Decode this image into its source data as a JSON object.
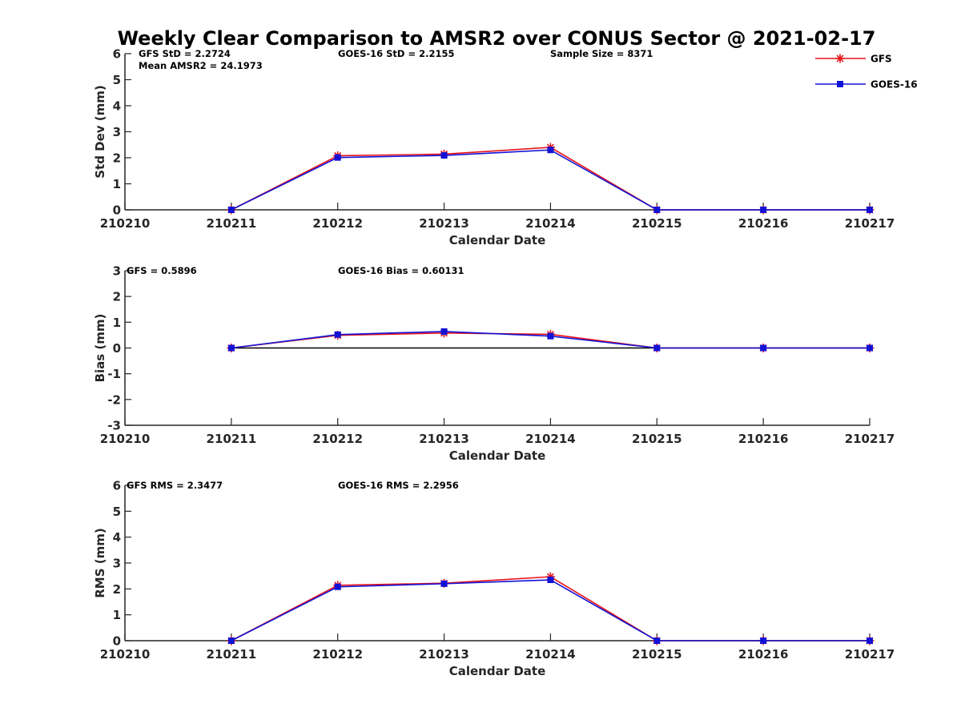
{
  "chart_data": {
    "type": "line",
    "title": "Weekly Clear Comparison to AMSR2 over CONUS Sector @ 2021-02-17",
    "x_tick_labels": [
      "210210",
      "210211",
      "210212",
      "210213",
      "210214",
      "210215",
      "210216",
      "210217"
    ],
    "legend": {
      "placement": "top-right",
      "entries": [
        {
          "name": "GFS",
          "color": "#e8141b",
          "marker": "asterisk"
        },
        {
          "name": "GOES-16",
          "color": "#1212d6",
          "marker": "square"
        }
      ]
    },
    "panels": [
      {
        "id": "stddev",
        "ylabel": "Std Dev (mm)",
        "xlabel": "Calendar Date",
        "ylim": [
          0,
          6
        ],
        "yticks": [
          0,
          1,
          2,
          3,
          4,
          5,
          6
        ],
        "zero_line": false,
        "annotations": [
          "GFS StD = 2.2724",
          "GOES-16 StD = 2.2155",
          "Sample Size = 8371",
          "Mean AMSR2 = 24.1973"
        ],
        "series": [
          {
            "name": "GFS",
            "color": "#e8141b",
            "x": [
              "210211",
              "210212",
              "210213",
              "210214",
              "210215",
              "210216",
              "210217"
            ],
            "values": [
              0,
              2.08,
              2.14,
              2.4,
              0,
              0,
              0
            ]
          },
          {
            "name": "GOES-16",
            "color": "#1212d6",
            "x": [
              "210211",
              "210212",
              "210213",
              "210214",
              "210215",
              "210216",
              "210217"
            ],
            "values": [
              0,
              2.01,
              2.09,
              2.3,
              0,
              0,
              0
            ]
          }
        ]
      },
      {
        "id": "bias",
        "ylabel": "Bias (mm)",
        "xlabel": "Calendar Date",
        "ylim": [
          -3,
          3
        ],
        "yticks": [
          -3,
          -2,
          -1,
          0,
          1,
          2,
          3
        ],
        "zero_line": true,
        "annotations": [
          "GFS = 0.5896",
          "GOES-16 Bias  = 0.60131"
        ],
        "series": [
          {
            "name": "GFS",
            "color": "#e8141b",
            "x": [
              "210211",
              "210212",
              "210213",
              "210214",
              "210215",
              "210216",
              "210217"
            ],
            "values": [
              0,
              0.49,
              0.58,
              0.53,
              0,
              0,
              0
            ]
          },
          {
            "name": "GOES-16",
            "color": "#1212d6",
            "x": [
              "210211",
              "210212",
              "210213",
              "210214",
              "210215",
              "210216",
              "210217"
            ],
            "values": [
              0,
              0.52,
              0.64,
              0.46,
              0,
              0,
              0
            ]
          }
        ]
      },
      {
        "id": "rms",
        "ylabel": "RMS (mm)",
        "xlabel": "Calendar Date",
        "ylim": [
          0,
          6
        ],
        "yticks": [
          0,
          1,
          2,
          3,
          4,
          5,
          6
        ],
        "zero_line": false,
        "annotations": [
          "GFS RMS = 2.3477",
          "GOES-16 RMS = 2.2956"
        ],
        "series": [
          {
            "name": "GFS",
            "color": "#e8141b",
            "x": [
              "210211",
              "210212",
              "210213",
              "210214",
              "210215",
              "210216",
              "210217"
            ],
            "values": [
              0,
              2.14,
              2.22,
              2.47,
              0,
              0,
              0
            ]
          },
          {
            "name": "GOES-16",
            "color": "#1212d6",
            "x": [
              "210211",
              "210212",
              "210213",
              "210214",
              "210215",
              "210216",
              "210217"
            ],
            "values": [
              0,
              2.08,
              2.2,
              2.35,
              0,
              0,
              0
            ]
          }
        ]
      }
    ]
  }
}
